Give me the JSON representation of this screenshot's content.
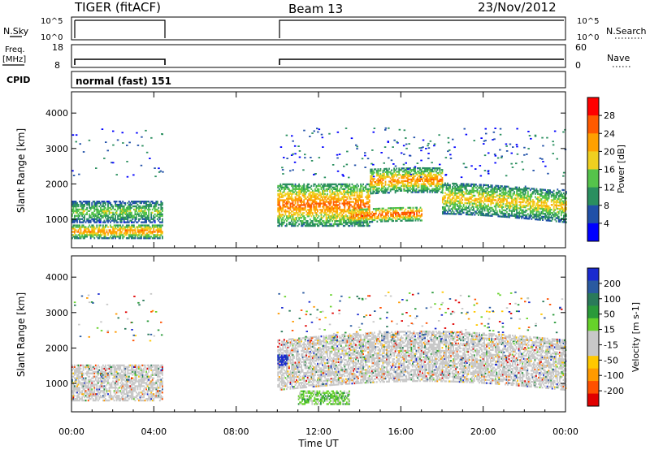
{
  "header": {
    "radar_label": "TIGER (fitACF)",
    "beam_label": "Beam 13",
    "date_label": "23/Nov/2012"
  },
  "strips": {
    "nsky_label": "N.Sky",
    "nsearch_label": "N.Search",
    "freq_label_line1": "Freq.",
    "freq_label_line2": "[MHz]",
    "nave_label": "Nave",
    "cpid_label": "CPID",
    "cpid_value": "normal (fast) 151",
    "noise_left_ticks": [
      "10^5",
      "10^0"
    ],
    "noise_right_ticks": [
      "10^5",
      "10^0"
    ],
    "freq_left_ticks": [
      "18",
      "8"
    ],
    "nave_right_ticks": [
      "60",
      "0"
    ]
  },
  "colors": {
    "power_scale": [
      "#0000ff",
      "#2050a8",
      "#2a8f5f",
      "#55c34b",
      "#f0d020",
      "#ffa000",
      "#ff5a00",
      "#ff0000"
    ],
    "velocity_scale": [
      "#e00000",
      "#ff5000",
      "#ff9a00",
      "#ffc800",
      "#c8c8c8",
      "#c8c8c8",
      "#66d22a",
      "#2a9a3a",
      "#2a7a5a",
      "#2a5aa0",
      "#1a2ad0"
    ],
    "ground_scatter": "#c8c8c8"
  },
  "chart_data": [
    {
      "type": "heatmap",
      "name": "power",
      "ylabel": "Slant Range [km]",
      "x_ticks": [
        "00:00",
        "04:00",
        "08:00",
        "12:00",
        "16:00",
        "20:00",
        "00:00"
      ],
      "y_ticks": [
        "1000",
        "2000",
        "3000",
        "4000"
      ],
      "ylim": [
        200,
        4600
      ],
      "xlim_hours": [
        0,
        24
      ],
      "colorbar": {
        "label": "Power [dB]",
        "ticks": [
          "4",
          "8",
          "12",
          "16",
          "20",
          "24",
          "28"
        ],
        "range": [
          0,
          32
        ]
      },
      "data_gap_hours": [
        4.4,
        10.0
      ],
      "echo_bands": [
        {
          "t_start": 0.0,
          "t_end": 4.4,
          "range_low_km": 900,
          "range_high_km": 1500,
          "peak_power_db": 16
        },
        {
          "t_start": 0.0,
          "t_end": 4.4,
          "range_low_km": 450,
          "range_high_km": 850,
          "peak_power_db": 24
        },
        {
          "t_start": 10.0,
          "t_end": 14.5,
          "range_low_km": 800,
          "range_high_km": 2000,
          "peak_power_db": 26
        },
        {
          "t_start": 14.5,
          "t_end": 18.0,
          "range_low_km": 1500,
          "range_high_km": 2200,
          "peak_power_db": 24
        },
        {
          "t_start": 18.0,
          "t_end": 24.0,
          "range_low_km": 900,
          "range_high_km": 1800,
          "peak_power_db": 20
        },
        {
          "t_start": 13.5,
          "t_end": 17.0,
          "range_low_km": 700,
          "range_high_km": 1100,
          "peak_power_db": 28
        }
      ]
    },
    {
      "type": "heatmap",
      "name": "velocity",
      "xlabel": "Time UT",
      "ylabel": "Slant Range [km]",
      "x_ticks": [
        "00:00",
        "04:00",
        "08:00",
        "12:00",
        "16:00",
        "20:00",
        "00:00"
      ],
      "y_ticks": [
        "1000",
        "2000",
        "3000",
        "4000"
      ],
      "ylim": [
        200,
        4600
      ],
      "xlim_hours": [
        0,
        24
      ],
      "colorbar": {
        "label": "Velocity [m s-1]",
        "ticks": [
          "200",
          "100",
          "50",
          "15",
          "-15",
          "-50",
          "-100",
          "-200"
        ],
        "range": [
          -250,
          250
        ]
      },
      "data_gap_hours": [
        4.4,
        10.0
      ],
      "echo_bands": [
        {
          "t_start": 0.0,
          "t_end": 4.4,
          "range_low_km": 500,
          "range_high_km": 1500,
          "dominant": "ground scatter"
        },
        {
          "t_start": 10.0,
          "t_end": 24.0,
          "range_low_km": 800,
          "range_high_km": 2200,
          "dominant": "ground scatter"
        },
        {
          "t_start": 10.0,
          "t_end": 10.5,
          "range_low_km": 1500,
          "range_high_km": 1800,
          "dominant_velocity_ms": 250
        },
        {
          "t_start": 11.0,
          "t_end": 13.5,
          "range_low_km": 400,
          "range_high_km": 800,
          "dominant_velocity_ms": 50
        }
      ]
    }
  ]
}
